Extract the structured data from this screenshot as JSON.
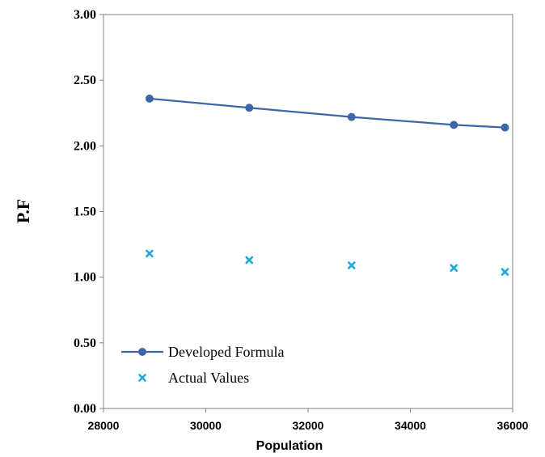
{
  "chart_data": {
    "type": "scatter",
    "xlabel": "Population",
    "ylabel": "P.F",
    "xlim": [
      28000,
      36000
    ],
    "ylim": [
      0,
      3
    ],
    "x_ticks": [
      "28000",
      "30000",
      "32000",
      "34000",
      "36000"
    ],
    "y_ticks": [
      "0.00",
      "0.50",
      "1.00",
      "1.50",
      "2.00",
      "2.50",
      "3.00"
    ],
    "grid": false,
    "legend_position": "bottom-left",
    "series": [
      {
        "name": "Developed Formula",
        "style": "line-with-circle-markers",
        "color": "#3f66a8",
        "x": [
          28900,
          30850,
          32850,
          34850,
          35850
        ],
        "y": [
          2.36,
          2.29,
          2.22,
          2.16,
          2.14
        ]
      },
      {
        "name": "Actual Values",
        "style": "x-markers",
        "color": "#1fa8e0",
        "x": [
          28900,
          30850,
          32850,
          34850,
          35850
        ],
        "y": [
          1.18,
          1.13,
          1.09,
          1.07,
          1.04
        ]
      }
    ]
  }
}
